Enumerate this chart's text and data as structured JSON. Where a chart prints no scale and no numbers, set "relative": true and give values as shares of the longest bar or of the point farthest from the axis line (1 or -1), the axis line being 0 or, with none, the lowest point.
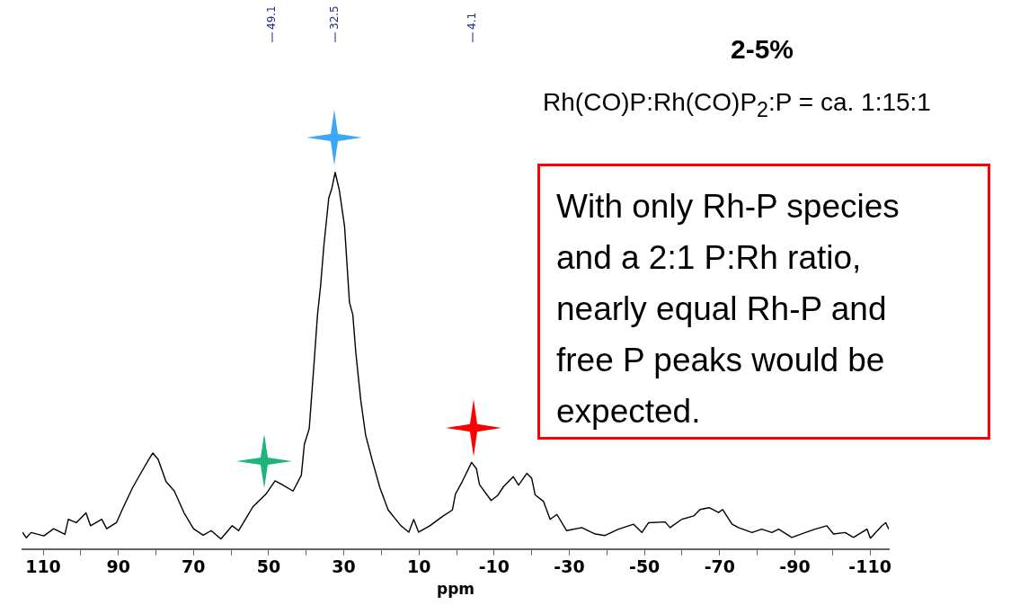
{
  "chart_data": {
    "type": "line",
    "title": "2-5%",
    "subtitle": "Rh(CO)P:Rh(CO)P$_{2}$:P = ca. 1:15:1",
    "xlabel": "ppm",
    "relative": true,
    "xlim": [
      115.5,
      -115
    ],
    "xticks": [
      110,
      {
        "value": 100,
        "label": null
      },
      90,
      {
        "value": 80,
        "label": null
      },
      70,
      {
        "value": 60,
        "label": null
      },
      50,
      {
        "value": 40,
        "label": null
      },
      30,
      {
        "value": 20,
        "label": null
      },
      10,
      {
        "value": 0,
        "label": null
      },
      -10,
      {
        "value": -20,
        "label": null
      },
      -30,
      {
        "value": -40,
        "label": null
      },
      -50,
      {
        "value": -60,
        "label": null
      },
      -70,
      {
        "value": -80,
        "label": null
      },
      -90,
      {
        "value": -100,
        "label": null
      },
      -110
    ],
    "annotations": [
      "49.1",
      "32.5",
      "4.1",
      "With only Rh-P species and a 2:1 P:Rh ratio, nearly equal Rh-P and free P peaks would be expected."
    ],
    "series": [
      {
        "color": "#000000",
        "x": [
          115.5,
          114.5,
          113.2,
          109.8,
          107.2,
          104.2,
          103.3,
          101.2,
          98.6,
          97.4,
          94.4,
          93.1,
          90.5,
          88.8,
          86.2,
          84.1,
          81.9,
          80.8,
          79.4,
          77.3,
          75.1,
          72.5,
          70.0,
          67.4,
          65.3,
          62.7,
          59.7,
          58.0,
          54.2,
          50.7,
          48.3,
          46.4,
          43.5,
          41.3,
          40.5,
          39.2,
          37.9,
          37.0,
          36.2,
          35.3,
          34.0,
          33.2,
          32.3,
          31.2,
          29.8,
          28.5,
          27.6,
          26.8,
          25.5,
          24.2,
          22.5,
          20.4,
          18.2,
          14.8,
          12.7,
          11.4,
          10.1,
          7.1,
          3.7,
          1.1,
          0.3,
          -1.5,
          -4.0,
          -5.3,
          -6.1,
          -9.2,
          -10.9,
          -12.5,
          -15.1,
          -16.5,
          -18.7,
          -20.0,
          -20.9,
          -23.1,
          -24.9,
          -26.7,
          -29.3,
          -33.3,
          -36.9,
          -39.5,
          -43.1,
          -47.1,
          -49.3,
          -51.1,
          -55.5,
          -56.8,
          -59.9,
          -63.1,
          -64.8,
          -67.2,
          -69.7,
          -70.8,
          -73.3,
          -75.0,
          -78.6,
          -81.2,
          -83.9,
          -85.7,
          -89.2,
          -92.8,
          -95.4,
          -98.5,
          -100.3,
          -103.4,
          -105.6,
          -109.2,
          -110.1,
          -113.2,
          -114.2,
          -115.0
        ],
        "values": [
          0.045,
          0.03,
          0.044,
          0.035,
          0.054,
          0.039,
          0.079,
          0.07,
          0.096,
          0.062,
          0.079,
          0.054,
          0.07,
          0.108,
          0.163,
          0.2,
          0.238,
          0.255,
          0.238,
          0.179,
          0.154,
          0.096,
          0.054,
          0.037,
          0.049,
          0.027,
          0.062,
          0.049,
          0.112,
          0.146,
          0.181,
          0.171,
          0.154,
          0.196,
          0.278,
          0.32,
          0.496,
          0.622,
          0.697,
          0.806,
          0.932,
          0.957,
          1,
          0.953,
          0.857,
          0.655,
          0.622,
          0.521,
          0.396,
          0.303,
          0.238,
          0.163,
          0.104,
          0.062,
          0.045,
          0.079,
          0.045,
          0.062,
          0.087,
          0.104,
          0.146,
          0.179,
          0.23,
          0.213,
          0.171,
          0.129,
          0.142,
          0.166,
          0.192,
          0.17,
          0.201,
          0.188,
          0.144,
          0.127,
          0.079,
          0.092,
          0.049,
          0.057,
          0.04,
          0.036,
          0.053,
          0.066,
          0.044,
          0.07,
          0.072,
          0.057,
          0.079,
          0.088,
          0.105,
          0.11,
          0.097,
          0.105,
          0.066,
          0.057,
          0.044,
          0.053,
          0.044,
          0.053,
          0.031,
          0.044,
          0.053,
          0.062,
          0.04,
          0.044,
          0.031,
          0.053,
          0.029,
          0.062,
          0.07,
          0.053
        ]
      }
    ]
  }
}
